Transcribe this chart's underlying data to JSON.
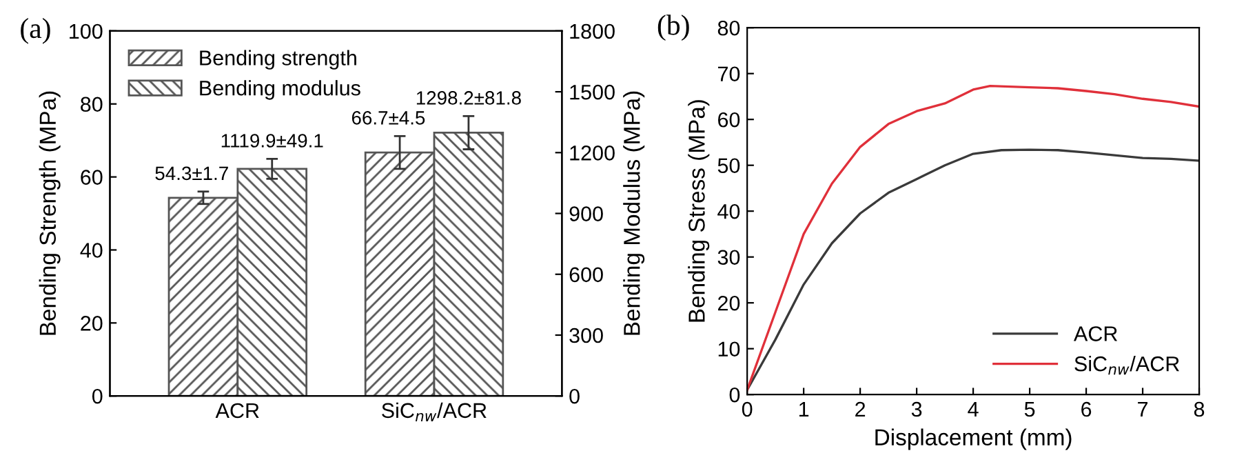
{
  "chart_data": [
    {
      "type": "bar",
      "title": "(a)",
      "ylabel": "Bending Strength (MPa)",
      "y2label": "Bending Modulus (MPa)",
      "categories": [
        "ACR",
        "SiC$_{nw}$/ACR"
      ],
      "series": [
        {
          "name": "Bending strength",
          "color": "#555555",
          "values": [
            54.3,
            66.7
          ],
          "errors": [
            1.7,
            4.5
          ],
          "value_labels": [
            "54.3±1.7",
            "66.7±4.5"
          ]
        },
        {
          "name": "Bending modulus",
          "color": "#555555",
          "values": [
            1119.9,
            1298.2
          ],
          "errors": [
            49.1,
            81.8
          ],
          "value_labels": [
            "1119.9±49.1",
            "1298.2±81.8"
          ],
          "axis": "y2"
        }
      ],
      "ylim": [
        0,
        100
      ],
      "yticks": [
        0,
        20,
        40,
        60,
        80,
        100
      ],
      "y2lim": [
        0,
        1800
      ],
      "y2ticks": [
        0,
        300,
        600,
        900,
        1200,
        1500,
        1800
      ],
      "legend": "top left",
      "grid": false
    },
    {
      "type": "line",
      "title": "(b)",
      "xlabel": "Displacement (mm)",
      "ylabel": "Bending Stress (MPa)",
      "series": [
        {
          "name": "ACR",
          "color": "#3a3a3a",
          "x": [
            0,
            0.5,
            1,
            1.5,
            2,
            2.5,
            3,
            3.5,
            4,
            4.5,
            5,
            5.5,
            6,
            6.5,
            7,
            7.5,
            8
          ],
          "values": [
            1,
            12,
            24,
            33,
            39.5,
            44,
            47,
            50,
            52.5,
            53.3,
            53.4,
            53.3,
            52.8,
            52.2,
            51.6,
            51.4,
            51
          ]
        },
        {
          "name": "SiC$_{nw}$/ACR",
          "color": "#e0303a",
          "x": [
            0,
            0.5,
            1,
            1.5,
            2,
            2.5,
            3,
            3.5,
            4,
            4.3,
            5,
            5.5,
            6,
            6.5,
            7,
            7.5,
            8
          ],
          "values": [
            1,
            18,
            35,
            46,
            54,
            59,
            61.8,
            63.5,
            66.5,
            67.3,
            67,
            66.8,
            66.2,
            65.5,
            64.5,
            63.8,
            62.8
          ]
        }
      ],
      "xlim": [
        0,
        8
      ],
      "xticks": [
        0,
        1,
        2,
        3,
        4,
        5,
        6,
        7,
        8
      ],
      "ylim": [
        0,
        80
      ],
      "yticks": [
        0,
        10,
        20,
        30,
        40,
        50,
        60,
        70,
        80
      ],
      "legend": "bottom right",
      "grid": false
    }
  ]
}
